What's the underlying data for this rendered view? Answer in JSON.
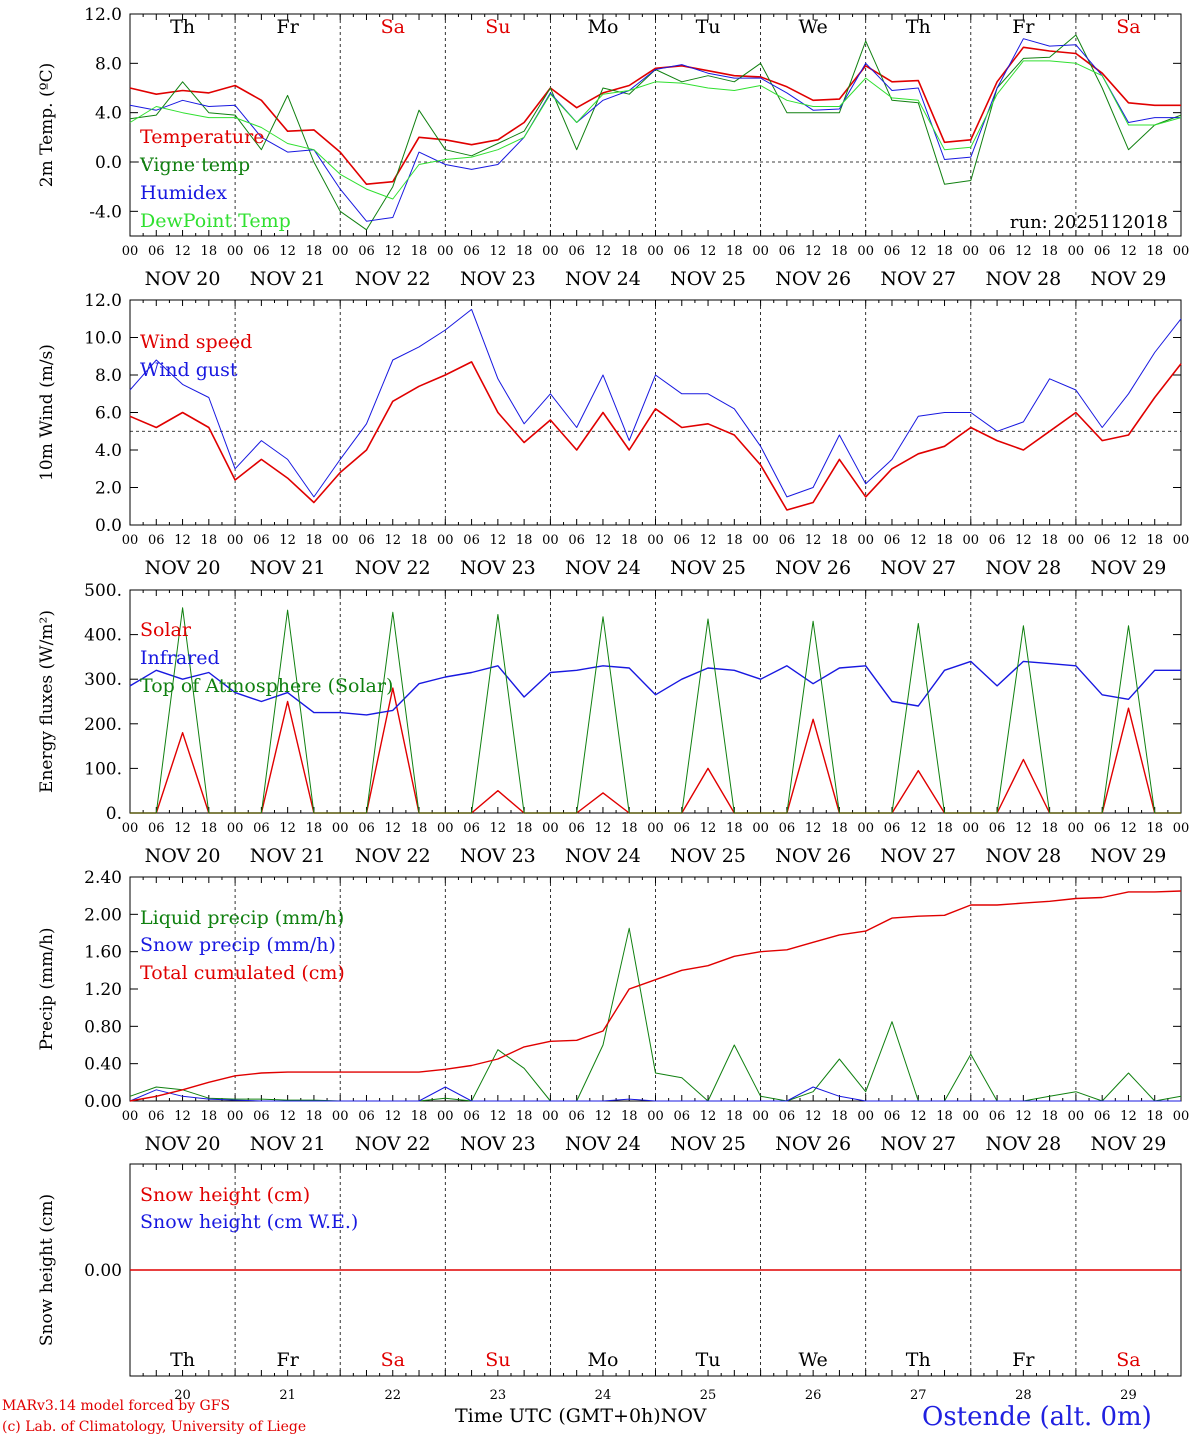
{
  "colors": {
    "temperature": "#e00000",
    "vigne": "#108010",
    "humidex": "#1818e0",
    "dewpoint": "#30e030",
    "weekend": "#e00000",
    "weekday": "#000000",
    "station": "#2020e0"
  },
  "time_axis": {
    "hour_ticks": [
      "00",
      "06",
      "12",
      "18"
    ],
    "final_tick": "00",
    "dates": [
      "NOV 20",
      "NOV 21",
      "NOV 22",
      "NOV 23",
      "NOV 24",
      "NOV 25",
      "NOV 26",
      "NOV 27",
      "NOV 28",
      "NOV 29"
    ],
    "day_names": [
      "Th",
      "Fr",
      "Sa",
      "Su",
      "Mo",
      "Tu",
      "We",
      "Th",
      "Fr",
      "Sa"
    ],
    "weekend_flags": [
      false,
      false,
      true,
      true,
      false,
      false,
      false,
      false,
      false,
      true
    ],
    "day_numbers": [
      "20",
      "21",
      "22",
      "23",
      "24",
      "25",
      "26",
      "27",
      "28",
      "29"
    ]
  },
  "footer": {
    "model": "MARv3.14 model forced by GFS",
    "copyright": "(c) Lab. of Climatology, University of Liege",
    "axis_title": "Time UTC (GMT+0h)",
    "month": "NOV",
    "station": "Ostende (alt. 0m)"
  },
  "chart_data": [
    {
      "type": "line",
      "ylabel": "2m Temp. (ºC)",
      "ylim": [
        -6.0,
        12.0
      ],
      "yticks": [
        "12.0",
        "8.0",
        "4.0",
        "0.0",
        "-4.0"
      ],
      "ytick_values": [
        12,
        8,
        4,
        0,
        -4
      ],
      "ref_line": 0,
      "show_day_names": true,
      "annotation": "run: 2025112018",
      "x": [
        0,
        6,
        12,
        18,
        24,
        30,
        36,
        42,
        48,
        54,
        60,
        66,
        72,
        78,
        84,
        90,
        96,
        102,
        108,
        114,
        120,
        126,
        132,
        138,
        144,
        150,
        156,
        162,
        168,
        174,
        180,
        186,
        192,
        198,
        204,
        210,
        216,
        222,
        228,
        234,
        240
      ],
      "series": [
        {
          "name": "Temperature",
          "color": "#e00000",
          "width": 1.6,
          "values": [
            6.0,
            5.5,
            5.8,
            5.6,
            6.2,
            5.0,
            2.5,
            2.6,
            0.8,
            -1.8,
            -1.6,
            2.0,
            1.8,
            1.4,
            1.8,
            3.2,
            6.0,
            4.4,
            5.6,
            6.2,
            7.6,
            7.8,
            7.4,
            7.0,
            6.9,
            6.1,
            5.0,
            5.1,
            7.8,
            6.5,
            6.6,
            1.6,
            1.8,
            6.5,
            9.3,
            9.0,
            8.8,
            7.2,
            4.8,
            4.6,
            4.6
          ]
        },
        {
          "name": "Vigne temp",
          "color": "#108010",
          "width": 1.0,
          "values": [
            3.5,
            3.8,
            6.5,
            4.0,
            3.8,
            1.0,
            5.4,
            0.0,
            -4.0,
            -5.5,
            -2.0,
            4.2,
            1.0,
            0.5,
            1.5,
            2.5,
            6.0,
            1.0,
            6.0,
            5.5,
            7.5,
            6.5,
            7.0,
            6.5,
            8.0,
            4.0,
            4.0,
            4.0,
            9.8,
            5.0,
            4.8,
            -1.8,
            -1.5,
            6.0,
            8.4,
            8.5,
            10.3,
            6.0,
            1.0,
            3.0,
            3.8
          ]
        },
        {
          "name": "Humidex",
          "color": "#1818e0",
          "width": 1.0,
          "values": [
            4.6,
            4.2,
            5.0,
            4.5,
            4.6,
            2.0,
            0.8,
            1.0,
            -2.2,
            -4.8,
            -4.5,
            0.8,
            -0.2,
            -0.6,
            -0.2,
            2.0,
            5.6,
            3.2,
            5.0,
            5.8,
            7.5,
            7.9,
            7.2,
            6.8,
            6.8,
            5.6,
            4.2,
            4.3,
            8.0,
            5.8,
            6.0,
            0.2,
            0.4,
            6.0,
            10.0,
            9.4,
            9.5,
            7.0,
            3.2,
            3.6,
            3.6
          ]
        },
        {
          "name": "DewPoint Temp",
          "color": "#30e030",
          "width": 1.0,
          "values": [
            3.2,
            4.5,
            4.0,
            3.6,
            3.6,
            2.8,
            1.5,
            1.0,
            -1.0,
            -2.2,
            -3.0,
            -0.2,
            0.2,
            0.4,
            1.0,
            2.0,
            5.5,
            3.2,
            5.5,
            5.8,
            6.5,
            6.4,
            6.0,
            5.8,
            6.2,
            5.0,
            4.5,
            4.5,
            6.8,
            5.2,
            5.0,
            1.0,
            1.2,
            5.5,
            8.2,
            8.2,
            8.0,
            7.0,
            3.0,
            3.0,
            3.6
          ]
        }
      ]
    },
    {
      "type": "line",
      "ylabel": "10m Wind (m/s)",
      "ylim": [
        0.0,
        12.0
      ],
      "yticks": [
        "12.0",
        "10.0",
        "8.0",
        "6.0",
        "4.0",
        "2.0",
        "0.0"
      ],
      "ytick_values": [
        12,
        10,
        8,
        6,
        4,
        2,
        0
      ],
      "ref_line": 5,
      "x": [
        0,
        6,
        12,
        18,
        24,
        30,
        36,
        42,
        48,
        54,
        60,
        66,
        72,
        78,
        84,
        90,
        96,
        102,
        108,
        114,
        120,
        126,
        132,
        138,
        144,
        150,
        156,
        162,
        168,
        174,
        180,
        186,
        192,
        198,
        204,
        210,
        216,
        222,
        228,
        234,
        240
      ],
      "series": [
        {
          "name": "Wind speed",
          "color": "#e00000",
          "width": 1.6,
          "values": [
            5.8,
            5.2,
            6.0,
            5.2,
            2.4,
            3.5,
            2.5,
            1.2,
            2.8,
            4.0,
            6.6,
            7.4,
            8.0,
            8.7,
            6.0,
            4.4,
            5.6,
            4.0,
            6.0,
            4.0,
            6.2,
            5.2,
            5.4,
            4.8,
            3.2,
            0.8,
            1.2,
            3.5,
            1.5,
            3.0,
            3.8,
            4.2,
            5.2,
            4.5,
            4.0,
            5.0,
            6.0,
            4.5,
            4.8,
            6.8,
            8.6
          ]
        },
        {
          "name": "Wind gust",
          "color": "#1818e0",
          "width": 1.0,
          "values": [
            7.2,
            8.8,
            7.5,
            6.8,
            3.0,
            4.5,
            3.5,
            1.5,
            3.5,
            5.4,
            8.8,
            9.5,
            10.4,
            11.5,
            7.8,
            5.4,
            7.0,
            5.2,
            8.0,
            4.5,
            8.0,
            7.0,
            7.0,
            6.2,
            4.2,
            1.5,
            2.0,
            4.8,
            2.2,
            3.5,
            5.8,
            6.0,
            6.0,
            5.0,
            5.5,
            7.8,
            7.2,
            5.2,
            7.0,
            9.2,
            11.0
          ]
        }
      ]
    },
    {
      "type": "line",
      "ylabel": "Energy fluxes (W/m²)",
      "ylim": [
        0,
        500
      ],
      "yticks": [
        "500.",
        "400.",
        "300.",
        "200.",
        "100.",
        "0."
      ],
      "ytick_values": [
        500,
        400,
        300,
        200,
        100,
        0
      ],
      "x": [
        0,
        6,
        12,
        18,
        24,
        30,
        36,
        42,
        48,
        54,
        60,
        66,
        72,
        78,
        84,
        90,
        96,
        102,
        108,
        114,
        120,
        126,
        132,
        138,
        144,
        150,
        156,
        162,
        168,
        174,
        180,
        186,
        192,
        198,
        204,
        210,
        216,
        222,
        228,
        234,
        240
      ],
      "series": [
        {
          "name": "Solar",
          "color": "#e00000",
          "width": 1.4,
          "values": [
            0,
            0,
            180,
            0,
            0,
            0,
            250,
            0,
            0,
            0,
            280,
            0,
            0,
            0,
            50,
            0,
            0,
            0,
            45,
            0,
            0,
            0,
            100,
            0,
            0,
            0,
            210,
            0,
            0,
            0,
            95,
            0,
            0,
            0,
            120,
            0,
            0,
            0,
            235,
            0,
            0
          ]
        },
        {
          "name": "Infrared",
          "color": "#1818e0",
          "width": 1.4,
          "values": [
            285,
            320,
            300,
            315,
            270,
            250,
            270,
            225,
            225,
            220,
            230,
            290,
            305,
            315,
            330,
            260,
            315,
            320,
            330,
            325,
            265,
            300,
            325,
            320,
            300,
            330,
            290,
            325,
            330,
            250,
            240,
            320,
            340,
            285,
            340,
            335,
            330,
            265,
            255,
            320,
            320
          ]
        },
        {
          "name": "Top of Atmosphere (Solar)",
          "color": "#108010",
          "width": 1.0,
          "values": [
            0,
            0,
            460,
            0,
            0,
            0,
            455,
            0,
            0,
            0,
            450,
            0,
            0,
            0,
            445,
            0,
            0,
            0,
            440,
            0,
            0,
            0,
            435,
            0,
            0,
            0,
            430,
            0,
            0,
            0,
            425,
            0,
            0,
            0,
            420,
            0,
            0,
            0,
            420,
            0,
            0
          ]
        }
      ]
    },
    {
      "type": "line",
      "ylabel": "Precip (mm/h)",
      "ylim": [
        0.0,
        2.4
      ],
      "yticks": [
        "2.40",
        "2.00",
        "1.60",
        "1.20",
        "0.80",
        "0.40",
        "0.00"
      ],
      "ytick_values": [
        2.4,
        2.0,
        1.6,
        1.2,
        0.8,
        0.4,
        0.0
      ],
      "x": [
        0,
        6,
        12,
        18,
        24,
        30,
        36,
        42,
        48,
        54,
        60,
        66,
        72,
        78,
        84,
        90,
        96,
        102,
        108,
        114,
        120,
        126,
        132,
        138,
        144,
        150,
        156,
        162,
        168,
        174,
        180,
        186,
        192,
        198,
        204,
        210,
        216,
        222,
        228,
        234,
        240
      ],
      "series": [
        {
          "name": "Liquid precip (mm/h)",
          "color": "#108010",
          "width": 1.0,
          "values": [
            0.05,
            0.15,
            0.12,
            0.03,
            0.02,
            0.02,
            0.01,
            0.01,
            0.0,
            0.0,
            0.0,
            0.0,
            0.03,
            0.0,
            0.55,
            0.35,
            0.0,
            0.0,
            0.6,
            1.85,
            0.3,
            0.25,
            0.0,
            0.6,
            0.05,
            0.0,
            0.1,
            0.45,
            0.1,
            0.85,
            0.0,
            0.0,
            0.5,
            0.0,
            0.0,
            0.05,
            0.1,
            0.0,
            0.3,
            0.0,
            0.05
          ]
        },
        {
          "name": "Snow precip (mm/h)",
          "color": "#1818e0",
          "width": 1.0,
          "values": [
            0.0,
            0.12,
            0.05,
            0.02,
            0.01,
            0.0,
            0.0,
            0.0,
            0.0,
            0.0,
            0.0,
            0.0,
            0.15,
            0.0,
            0.0,
            0.0,
            0.0,
            0.0,
            0.0,
            0.02,
            0.0,
            0.0,
            0.0,
            0.0,
            0.0,
            0.0,
            0.15,
            0.05,
            0.0,
            0.0,
            0.0,
            0.0,
            0.0,
            0.0,
            0.0,
            0.0,
            0.0,
            0.0,
            0.0,
            0.0,
            0.0
          ]
        },
        {
          "name": "Total cumulated (cm)",
          "color": "#e00000",
          "width": 1.4,
          "values": [
            0.0,
            0.05,
            0.12,
            0.2,
            0.27,
            0.3,
            0.31,
            0.31,
            0.31,
            0.31,
            0.31,
            0.31,
            0.34,
            0.38,
            0.45,
            0.58,
            0.64,
            0.65,
            0.75,
            1.2,
            1.3,
            1.4,
            1.45,
            1.55,
            1.6,
            1.62,
            1.7,
            1.78,
            1.82,
            1.96,
            1.98,
            1.99,
            2.1,
            2.1,
            2.12,
            2.14,
            2.17,
            2.18,
            2.24,
            2.24,
            2.25
          ]
        }
      ]
    },
    {
      "type": "line",
      "ylabel": "Snow height (cm)",
      "ylim": [
        -1.0,
        1.0
      ],
      "yticks": [
        "0.00"
      ],
      "ytick_values": [
        0.0
      ],
      "show_day_names": true,
      "show_day_numbers": true,
      "x": [
        0,
        240
      ],
      "series": [
        {
          "name": "Snow height (cm)",
          "color": "#e00000",
          "width": 1.4,
          "values": [
            0.0,
            0.0
          ]
        },
        {
          "name": "Snow height (cm W.E.)",
          "color": "#1818e0",
          "width": 1.0,
          "values": [
            0.0,
            0.0
          ],
          "legend_only": true
        }
      ]
    }
  ]
}
